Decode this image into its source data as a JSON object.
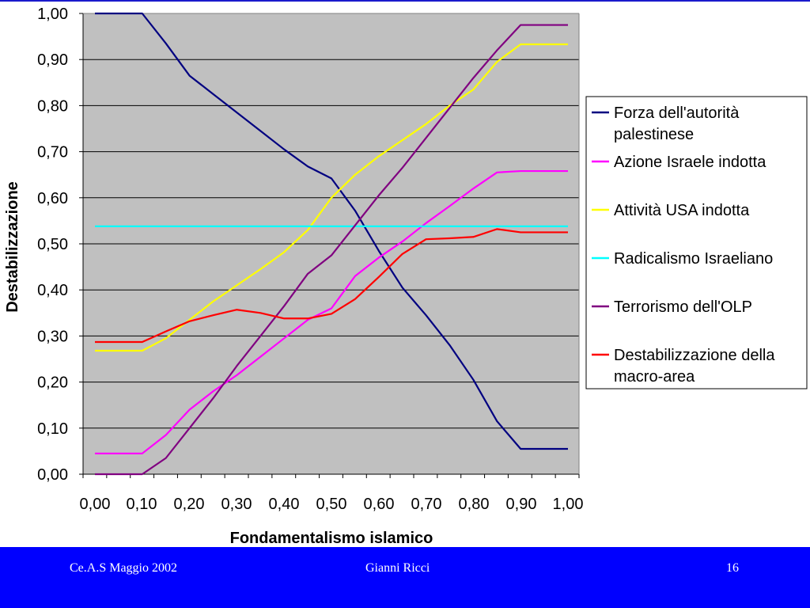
{
  "footer": {
    "left": "Ce.A.S Maggio 2002",
    "center": "Gianni Ricci",
    "page_number": "16"
  },
  "colors": {
    "plot_background": "#c0c0c0",
    "footer_background": "#0000ff"
  },
  "chart_data": {
    "type": "line",
    "xlabel": "Fondamentalismo islamico",
    "ylabel": "Destabilizzazione",
    "xlim": [
      0,
      1
    ],
    "ylim": [
      0,
      1
    ],
    "grid": "horizontal",
    "legend_position": "right",
    "x_ticks": [
      "0,00",
      "0,10",
      "0,20",
      "0,30",
      "0,40",
      "0,50",
      "0,60",
      "0,70",
      "0,80",
      "0,90",
      "1,00"
    ],
    "y_ticks": [
      "0,00",
      "0,10",
      "0,20",
      "0,30",
      "0,40",
      "0,50",
      "0,60",
      "0,70",
      "0,80",
      "0,90",
      "1,00"
    ],
    "x": [
      0.0,
      0.05,
      0.1,
      0.15,
      0.2,
      0.25,
      0.3,
      0.35,
      0.4,
      0.45,
      0.5,
      0.55,
      0.6,
      0.65,
      0.7,
      0.75,
      0.8,
      0.85,
      0.9,
      0.95,
      1.0
    ],
    "series": [
      {
        "name": "Forza dell'autorità palestinese",
        "color": "#000080",
        "values": [
          1.0,
          1.0,
          1.0,
          0.935,
          0.865,
          0.825,
          0.785,
          0.745,
          0.705,
          0.668,
          0.642,
          0.572,
          0.485,
          0.405,
          0.345,
          0.28,
          0.205,
          0.115,
          0.055,
          0.055,
          0.055
        ]
      },
      {
        "name": "Azione Israele indotta",
        "color": "#ff00ff",
        "values": [
          0.045,
          0.045,
          0.045,
          0.085,
          0.14,
          0.18,
          0.215,
          0.255,
          0.295,
          0.335,
          0.36,
          0.43,
          0.47,
          0.505,
          0.545,
          0.582,
          0.62,
          0.655,
          0.658,
          0.658,
          0.658
        ]
      },
      {
        "name": "Attività USA indotta",
        "color": "#ffff00",
        "values": [
          0.268,
          0.268,
          0.268,
          0.295,
          0.335,
          0.375,
          0.41,
          0.445,
          0.482,
          0.53,
          0.6,
          0.65,
          0.69,
          0.725,
          0.76,
          0.8,
          0.835,
          0.895,
          0.933,
          0.933,
          0.933
        ]
      },
      {
        "name": "Radicalismo Israeliano",
        "color": "#00ffff",
        "values": [
          0.538,
          0.538,
          0.538,
          0.538,
          0.538,
          0.538,
          0.538,
          0.538,
          0.538,
          0.538,
          0.538,
          0.538,
          0.538,
          0.538,
          0.538,
          0.538,
          0.538,
          0.538,
          0.538,
          0.538,
          0.538
        ]
      },
      {
        "name": "Terrorismo dell'OLP",
        "color": "#800080",
        "values": [
          0.0,
          0.0,
          0.0,
          0.035,
          0.1,
          0.165,
          0.235,
          0.3,
          0.365,
          0.435,
          0.475,
          0.54,
          0.605,
          0.665,
          0.73,
          0.795,
          0.86,
          0.92,
          0.975,
          0.975,
          0.975
        ]
      },
      {
        "name": "Destabilizzazione della macro-area",
        "color": "#ff0000",
        "values": [
          0.287,
          0.287,
          0.287,
          0.31,
          0.332,
          0.345,
          0.357,
          0.35,
          0.338,
          0.338,
          0.348,
          0.38,
          0.428,
          0.478,
          0.51,
          0.512,
          0.515,
          0.532,
          0.525,
          0.525,
          0.525
        ]
      }
    ]
  }
}
